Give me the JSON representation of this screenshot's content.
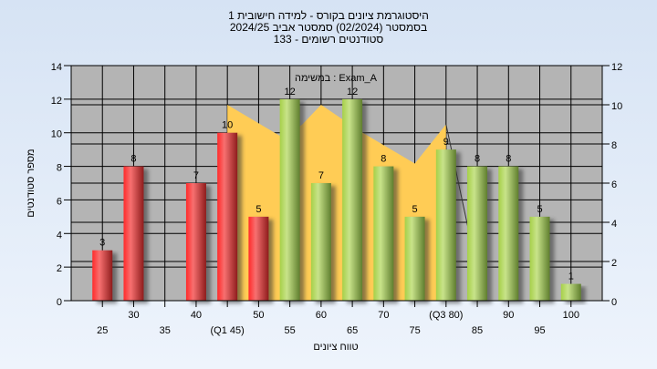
{
  "title_lines": [
    "היסטוגרמת ציונים בקורס - למידה חישובית 1",
    "בסמסטר  (02/2024)  סמסטר אביב 2024/25",
    "סטודנטים רשומים - 133"
  ],
  "chart_data": {
    "type": "bar",
    "annotation": "במשימה : Exam_A",
    "xlabel": "טווח ציונים",
    "ylabel": "מספר סטודנטים",
    "categories": [
      "25",
      "30",
      "35",
      "40",
      "(Q1 45)",
      "50",
      "55",
      "60",
      "65",
      "70",
      "75",
      "(Q3 80)",
      "85",
      "90",
      "95",
      "100"
    ],
    "x": [
      25,
      30,
      35,
      40,
      45,
      50,
      55,
      60,
      65,
      70,
      75,
      80,
      85,
      90,
      95,
      100
    ],
    "values": [
      3,
      8,
      0,
      7,
      10,
      5,
      12,
      7,
      12,
      8,
      5,
      9,
      8,
      8,
      5,
      1
    ],
    "bar_colors": [
      "red",
      "red",
      "red",
      "red",
      "red",
      "red",
      "green",
      "green",
      "green",
      "green",
      "green",
      "green",
      "green",
      "green",
      "green",
      "green"
    ],
    "ylim": [
      0,
      14
    ],
    "yticks": [
      0,
      2,
      4,
      6,
      8,
      10,
      12,
      14
    ],
    "y2lim": [
      0,
      12
    ],
    "y2ticks": [
      0,
      2,
      4,
      6,
      8,
      10,
      12
    ],
    "xlim": [
      20,
      105
    ],
    "grid": true,
    "overlay_area": {
      "axis": "right",
      "color": "#ffcc55",
      "points": [
        [
          45,
          10
        ],
        [
          54,
          8.3
        ],
        [
          57,
          9
        ],
        [
          60,
          10
        ],
        [
          66,
          8.7
        ],
        [
          75,
          7
        ],
        [
          80,
          9
        ]
      ],
      "tail_line": [
        [
          80,
          9
        ],
        [
          84,
          3
        ]
      ]
    },
    "colors": {
      "red": "#e83030",
      "green": "#9cc04a",
      "plot_bg": "#b4b4b4"
    }
  }
}
